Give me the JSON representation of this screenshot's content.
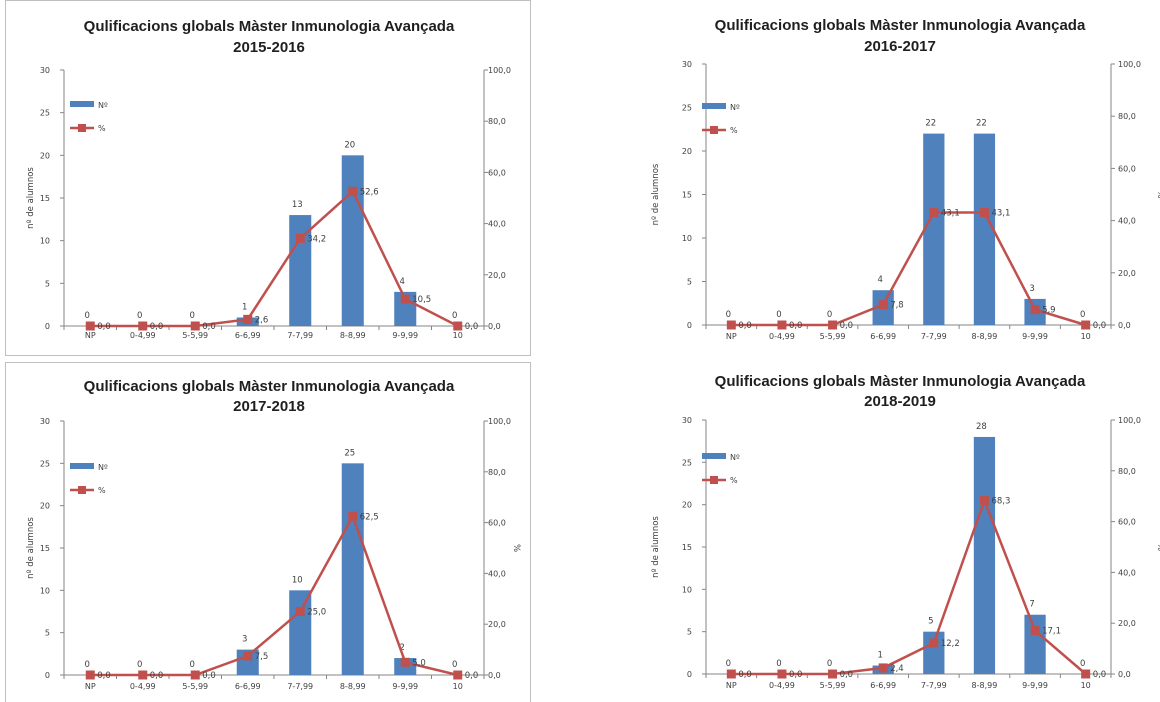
{
  "colors": {
    "bar": "#4f81bd",
    "line": "#c0504d",
    "axis": "#868686"
  },
  "chart_data": [
    {
      "type": "bar",
      "title": [
        "Qulificacions globals Màster Inmunologia Avançada",
        "2015-2016"
      ],
      "categories": [
        "NP",
        "0-4,99",
        "5-5,99",
        "6-6,99",
        "7-7,99",
        "8-8,99",
        "9-9,99",
        "10"
      ],
      "ylabel": "nº de alumnos",
      "y2label": "%",
      "ylim": [
        0,
        30
      ],
      "yticks": [
        "0",
        "5",
        "10",
        "15",
        "20",
        "25",
        "30"
      ],
      "y2lim": [
        0,
        100
      ],
      "y2ticks": [
        "0,0",
        "20,0",
        "40,0",
        "60,0",
        "80,0",
        "100,0"
      ],
      "legend": [
        "Nº",
        "%"
      ],
      "series": [
        {
          "name": "Nº",
          "kind": "bar",
          "values": [
            0,
            0,
            0,
            1,
            13,
            20,
            4,
            0
          ],
          "labels": [
            "0",
            "0",
            "0",
            "1",
            "13",
            "20",
            "4",
            "0"
          ]
        },
        {
          "name": "%",
          "kind": "line",
          "axis": "secondary",
          "values": [
            0,
            0,
            0,
            2.6,
            34.2,
            52.6,
            10.5,
            0
          ],
          "labels": [
            "0,0",
            "0,0",
            "0,0",
            "2,6",
            "34,2",
            "52,6",
            "10,5",
            "0,0"
          ]
        }
      ]
    },
    {
      "type": "bar",
      "title": [
        "Qulificacions globals Màster Inmunologia Avançada",
        "2016-2017"
      ],
      "categories": [
        "NP",
        "0-4,99",
        "5-5,99",
        "6-6,99",
        "7-7,99",
        "8-8,99",
        "9-9,99",
        "10"
      ],
      "ylabel": "nº de alumnos",
      "y2label": "%",
      "ylim": [
        0,
        30
      ],
      "yticks": [
        "0",
        "5",
        "10",
        "15",
        "20",
        "25",
        "30"
      ],
      "y2lim": [
        0,
        100
      ],
      "y2ticks": [
        "0,0",
        "20,0",
        "40,0",
        "60,0",
        "80,0",
        "100,0"
      ],
      "legend": [
        "Nº",
        "%"
      ],
      "series": [
        {
          "name": "Nº",
          "kind": "bar",
          "values": [
            0,
            0,
            0,
            4,
            22,
            22,
            3,
            0
          ],
          "labels": [
            "0",
            "0",
            "0",
            "4",
            "22",
            "22",
            "3",
            "0"
          ]
        },
        {
          "name": "%",
          "kind": "line",
          "axis": "secondary",
          "values": [
            0,
            0,
            0,
            7.8,
            43.1,
            43.1,
            5.9,
            0
          ],
          "labels": [
            "0,0",
            "0,0",
            "0,0",
            "7,8",
            "43,1",
            "43,1",
            "5,9",
            "0,0"
          ]
        }
      ]
    },
    {
      "type": "bar",
      "title": [
        "Qulificacions globals Màster Inmunologia Avançada",
        "2017-2018"
      ],
      "categories": [
        "NP",
        "0-4,99",
        "5-5,99",
        "6-6,99",
        "7-7,99",
        "8-8,99",
        "9-9,99",
        "10"
      ],
      "ylabel": "nº de alumnos",
      "y2label": "%",
      "ylim": [
        0,
        30
      ],
      "yticks": [
        "0",
        "5",
        "10",
        "15",
        "20",
        "25",
        "30"
      ],
      "y2lim": [
        0,
        100
      ],
      "y2ticks": [
        "0,0",
        "20,0",
        "40,0",
        "60,0",
        "80,0",
        "100,0"
      ],
      "legend": [
        "Nº",
        "%"
      ],
      "series": [
        {
          "name": "Nº",
          "kind": "bar",
          "values": [
            0,
            0,
            0,
            3,
            10,
            25,
            2,
            0
          ],
          "labels": [
            "0",
            "0",
            "0",
            "3",
            "10",
            "25",
            "2",
            "0"
          ]
        },
        {
          "name": "%",
          "kind": "line",
          "axis": "secondary",
          "values": [
            0,
            0,
            0,
            7.5,
            25.0,
            62.5,
            5.0,
            0
          ],
          "labels": [
            "0,0",
            "0,0",
            "0,0",
            "7,5",
            "25,0",
            "62,5",
            "5,0",
            "0,0"
          ]
        }
      ]
    },
    {
      "type": "bar",
      "title": [
        "Qulificacions globals Màster Inmunologia Avançada",
        "2018-2019"
      ],
      "categories": [
        "NP",
        "0-4,99",
        "5-5,99",
        "6-6,99",
        "7-7,99",
        "8-8,99",
        "9-9,99",
        "10"
      ],
      "ylabel": "nº de alumnos",
      "y2label": "%",
      "ylim": [
        0,
        30
      ],
      "yticks": [
        "0",
        "5",
        "10",
        "15",
        "20",
        "25",
        "30"
      ],
      "y2lim": [
        0,
        100
      ],
      "y2ticks": [
        "0,0",
        "20,0",
        "40,0",
        "60,0",
        "80,0",
        "100,0"
      ],
      "legend": [
        "Nº",
        "%"
      ],
      "series": [
        {
          "name": "Nº",
          "kind": "bar",
          "values": [
            0,
            0,
            0,
            1,
            5,
            28,
            7,
            0
          ],
          "labels": [
            "0",
            "0",
            "0",
            "1",
            "5",
            "28",
            "7",
            "0"
          ]
        },
        {
          "name": "%",
          "kind": "line",
          "axis": "secondary",
          "values": [
            0,
            0,
            0,
            2.4,
            12.2,
            68.3,
            17.1,
            0
          ],
          "labels": [
            "0,0",
            "0,0",
            "0,0",
            "2,4",
            "12,2",
            "68,3",
            "17,1",
            "0,0"
          ]
        }
      ]
    }
  ]
}
